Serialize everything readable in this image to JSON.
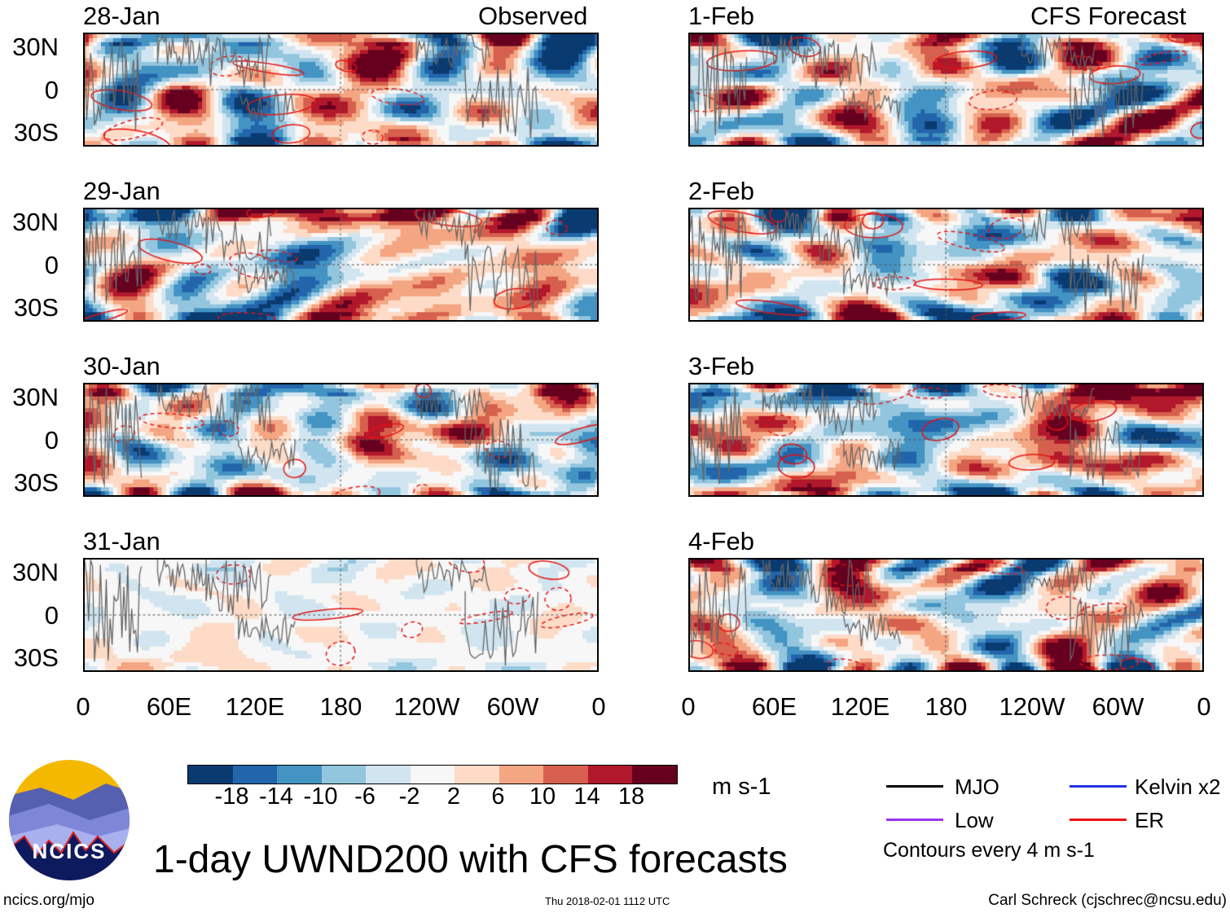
{
  "headers": {
    "left": "Observed",
    "right": "CFS Forecast"
  },
  "panels": [
    {
      "date": "28-Jan",
      "type": "observed",
      "intensity": 1.0
    },
    {
      "date": "29-Jan",
      "type": "observed",
      "intensity": 1.0
    },
    {
      "date": "30-Jan",
      "type": "observed",
      "intensity": 1.0
    },
    {
      "date": "31-Jan",
      "type": "observed",
      "intensity": 0.25
    },
    {
      "date": "1-Feb",
      "type": "forecast",
      "intensity": 1.0
    },
    {
      "date": "2-Feb",
      "type": "forecast",
      "intensity": 1.0
    },
    {
      "date": "3-Feb",
      "type": "forecast",
      "intensity": 1.0
    },
    {
      "date": "4-Feb",
      "type": "forecast",
      "intensity": 1.0
    }
  ],
  "y_ticks": [
    "30N",
    "0",
    "30S"
  ],
  "x_ticks": [
    "0",
    "60E",
    "120E",
    "180",
    "120W",
    "60W",
    "0"
  ],
  "colorbar": {
    "labels": [
      "-18",
      "-14",
      "-10",
      "-6",
      "-2",
      "2",
      "6",
      "10",
      "14",
      "18"
    ],
    "colors": [
      "#0a3b70",
      "#2265ab",
      "#4393c3",
      "#92c5de",
      "#d1e5f0",
      "#f7f7f7",
      "#fddbc7",
      "#f4a582",
      "#d6604d",
      "#b2182b",
      "#67001f"
    ],
    "units": "m s-1"
  },
  "legend": {
    "items": [
      {
        "label": "MJO",
        "color": "#000000"
      },
      {
        "label": "Kelvin x2",
        "color": "#2233dd"
      },
      {
        "label": "Low",
        "color": "#9933ee"
      },
      {
        "label": "ER",
        "color": "#ee1111"
      }
    ],
    "note": "Contours every 4 m s-1"
  },
  "logo_text": "NCICS",
  "title": "1-day UWND200 with CFS forecasts",
  "footer": {
    "left": "ncics.org/mjo",
    "center": "Thu 2018-02-01 1112 UTC",
    "right": "Carl Schreck (cjschrec@ncsu.edu)"
  }
}
